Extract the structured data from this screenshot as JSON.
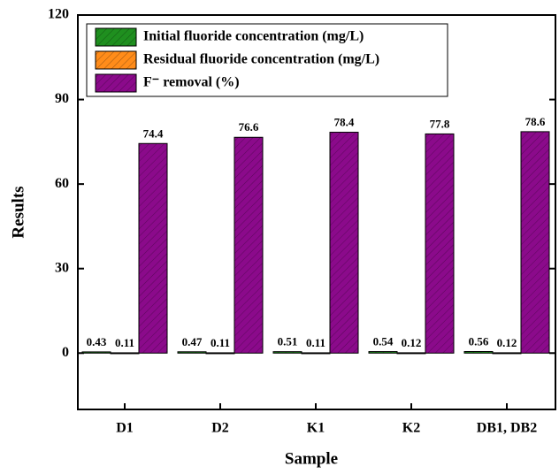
{
  "chart_data": {
    "type": "bar",
    "xlabel": "Sample",
    "ylabel": "Results",
    "categories": [
      "D1",
      "D2",
      "K1",
      "K2",
      "DB1, DB2"
    ],
    "series": [
      {
        "name": "Initial fluoride concentration (mg/L)",
        "color": "#1f8f1f",
        "values": [
          0.43,
          0.47,
          0.51,
          0.54,
          0.56
        ]
      },
      {
        "name": "Residual fluoride concentration (mg/L)",
        "color": "#ff8c1a",
        "values": [
          0.11,
          0.11,
          0.11,
          0.12,
          0.12
        ]
      },
      {
        "name": "F⁻ removal (%)",
        "color": "#8b0a8b",
        "values": [
          74.4,
          76.6,
          78.4,
          77.8,
          78.6
        ]
      }
    ],
    "ylim": [
      -20,
      120
    ],
    "yticks": [
      0,
      30,
      60,
      90,
      120
    ],
    "legend": "upper-left"
  }
}
